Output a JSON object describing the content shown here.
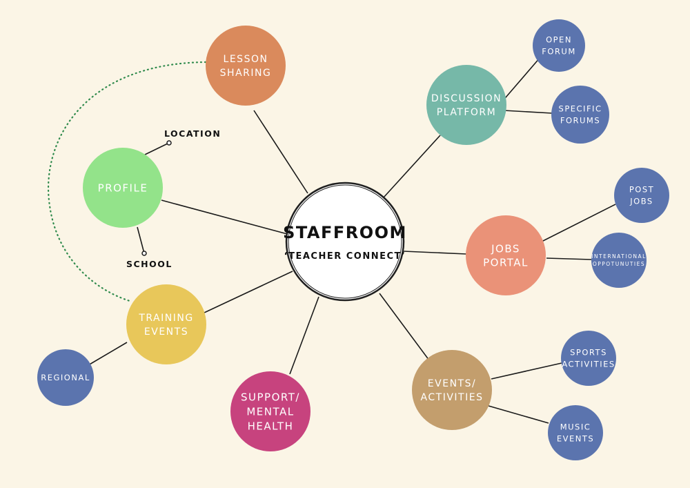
{
  "colors": {
    "background": "#fbf5e6",
    "line": "#1a1a1a",
    "dotted_line": "#2f8a4c",
    "lesson_sharing": "#da8a5c",
    "discussion_platform": "#76b8a8",
    "profile": "#93e38a",
    "jobs_portal": "#ea9278",
    "training_events": "#e8c75a",
    "support_mental_health": "#c7437e",
    "events_activities": "#c39e6d",
    "leaf_blue": "#5b74ae",
    "center_fill": "#ffffff"
  },
  "center": {
    "title": "STAFFROOM",
    "subtitle": "‘TEACHER CONNECT’"
  },
  "nodes": {
    "lesson_sharing": [
      "LESSON",
      "SHARING"
    ],
    "discussion_platform": [
      "DISCUSSION",
      "PLATFORM"
    ],
    "profile": [
      "PROFILE"
    ],
    "jobs_portal": [
      "JOBS",
      "PORTAL"
    ],
    "training_events": [
      "TRAINING",
      "EVENTS"
    ],
    "support_mental_health": [
      "SUPPORT/",
      "MENTAL",
      "HEALTH"
    ],
    "events_activities": [
      "EVENTS/",
      "ACTIVITIES"
    ],
    "open_forum": [
      "OPEN",
      "FORUM"
    ],
    "specific_forums": [
      "SPECIFIC",
      "FORUMS"
    ],
    "post_jobs": [
      "POST",
      "JOBS"
    ],
    "international_opportunities": [
      "INTERNATIONAL",
      "OPPOTUNUTIES"
    ],
    "regional": [
      "REGIONAL"
    ],
    "sports_activities": [
      "SPORTS",
      "ACTIVITIES"
    ],
    "music_events": [
      "MUSIC",
      "EVENTS"
    ]
  },
  "annotations": {
    "location": "LOCATION",
    "school": "SCHOOL"
  }
}
